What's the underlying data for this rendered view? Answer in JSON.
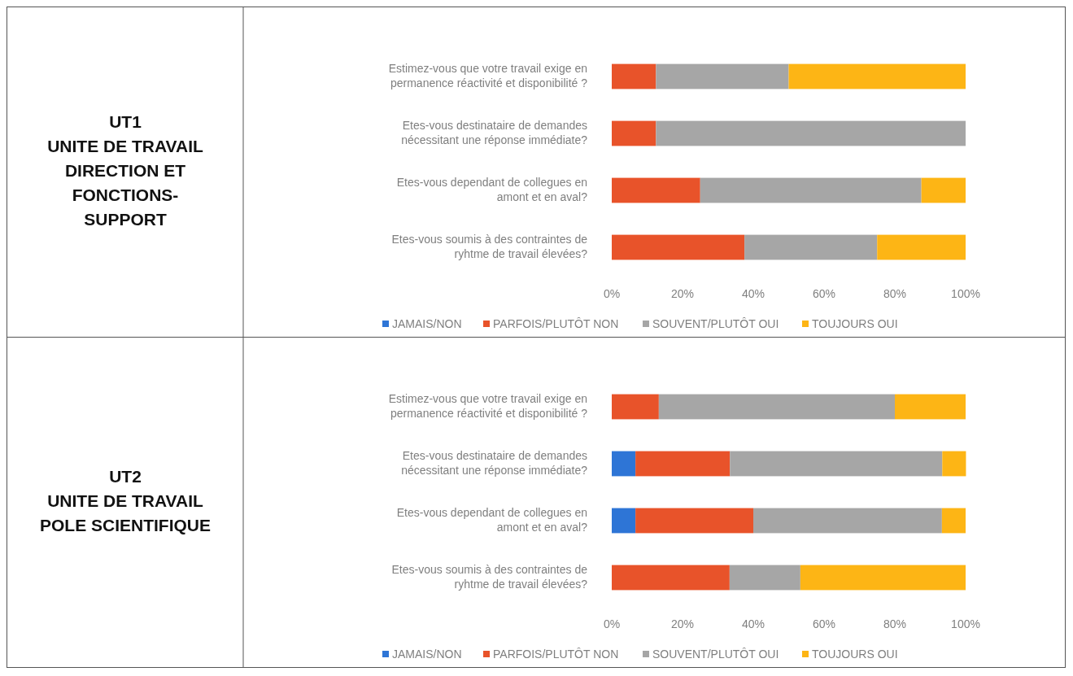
{
  "chart_data": [
    {
      "type": "bar",
      "orientation": "horizontal",
      "stacked": true,
      "annotations": [
        "UT1",
        "UNITE DE TRAVAIL DIRECTION ET FONCTIONS-SUPPORT"
      ],
      "categories": [
        "Estimez-vous que votre travail exige en permanence réactivité et disponibilité ?",
        "Etes-vous destinataire de demandes nécessitant une réponse immédiate?",
        "Etes-vous dependant de collegues en amont et en aval?",
        "Etes-vous soumis à des contraintes de ryhtme de travail élevées?"
      ],
      "series": [
        {
          "name": "JAMAIS/NON",
          "color": "#2e75d6",
          "values": [
            0,
            0,
            0,
            0
          ]
        },
        {
          "name": "PARFOIS/PLUTÔT NON",
          "color": "#e8532a",
          "values": [
            12.5,
            12.5,
            25,
            37.5
          ]
        },
        {
          "name": "SOUVENT/PLUTÔT OUI",
          "color": "#a6a6a6",
          "values": [
            37.5,
            87.5,
            62.5,
            37.5
          ]
        },
        {
          "name": "TOUJOURS OUI",
          "color": "#fdb515",
          "values": [
            50,
            0,
            12.5,
            25
          ]
        }
      ],
      "xlim": [
        0,
        100
      ],
      "xticks": [
        {
          "value": 0,
          "label": "0%"
        },
        {
          "value": 20,
          "label": "20%"
        },
        {
          "value": 40,
          "label": "40%"
        },
        {
          "value": 60,
          "label": "60%"
        },
        {
          "value": 80,
          "label": "80%"
        },
        {
          "value": 100,
          "label": "100%"
        }
      ],
      "legend": "bottom"
    },
    {
      "type": "bar",
      "orientation": "horizontal",
      "stacked": true,
      "annotations": [
        "UT2",
        "UNITE DE TRAVAIL POLE SCIENTIFIQUE"
      ],
      "categories": [
        "Estimez-vous que votre travail exige en permanence réactivité et disponibilité ?",
        "Etes-vous destinataire de demandes nécessitant une réponse immédiate?",
        "Etes-vous dependant de collegues en amont et en aval?",
        "Etes-vous soumis à des contraintes de ryhtme de travail élevées?"
      ],
      "series": [
        {
          "name": "JAMAIS/NON",
          "color": "#2e75d6",
          "values": [
            0,
            6.7,
            6.7,
            0
          ]
        },
        {
          "name": "PARFOIS/PLUTÔT NON",
          "color": "#e8532a",
          "values": [
            13.3,
            26.7,
            33.3,
            33.3
          ]
        },
        {
          "name": "SOUVENT/PLUTÔT OUI",
          "color": "#a6a6a6",
          "values": [
            66.7,
            60,
            53.3,
            20
          ]
        },
        {
          "name": "TOUJOURS OUI",
          "color": "#fdb515",
          "values": [
            20,
            6.7,
            6.7,
            46.7
          ]
        }
      ],
      "xlim": [
        0,
        100
      ],
      "xticks": [
        {
          "value": 0,
          "label": "0%"
        },
        {
          "value": 20,
          "label": "20%"
        },
        {
          "value": 40,
          "label": "40%"
        },
        {
          "value": 60,
          "label": "60%"
        },
        {
          "value": 80,
          "label": "80%"
        },
        {
          "value": 100,
          "label": "100%"
        }
      ],
      "legend": "bottom"
    }
  ]
}
